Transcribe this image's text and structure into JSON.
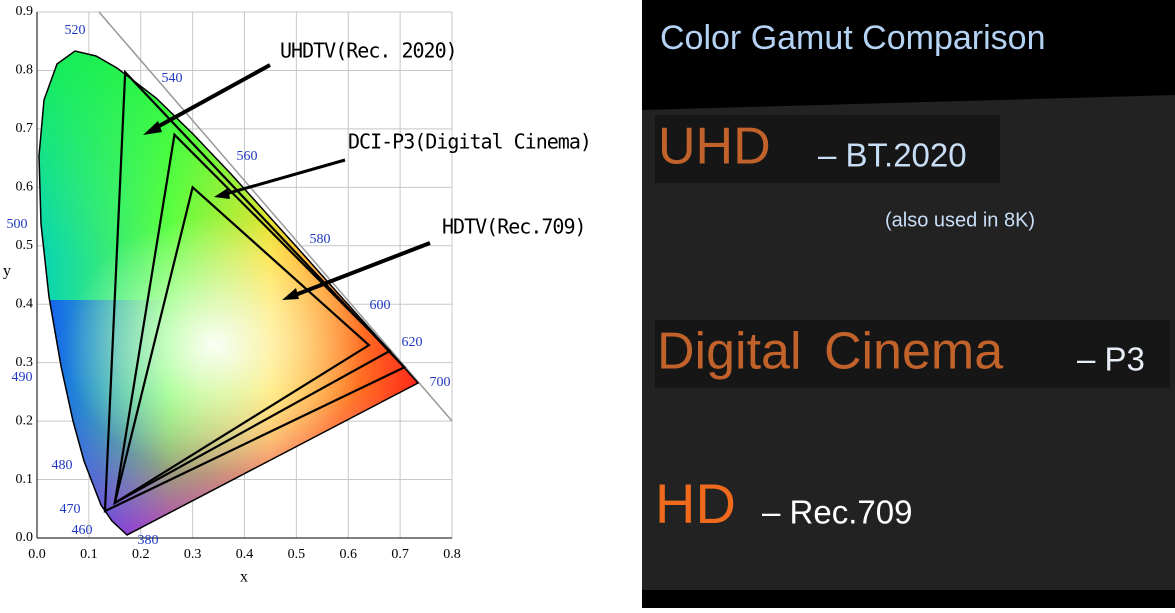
{
  "diagram": {
    "xlim": [
      0,
      0.8
    ],
    "ylim": [
      0,
      0.9
    ],
    "xticks": [
      {
        "value": 0,
        "label": "0.0"
      },
      {
        "value": 0.1,
        "label": "0.1"
      },
      {
        "value": 0.2,
        "label": "0.2"
      },
      {
        "value": 0.3,
        "label": "0.3"
      },
      {
        "value": 0.4,
        "label": "0.4"
      },
      {
        "value": 0.5,
        "label": "0.5"
      },
      {
        "value": 0.6,
        "label": "0.6"
      },
      {
        "value": 0.7,
        "label": "0.7"
      },
      {
        "value": 0.8,
        "label": "0.8"
      }
    ],
    "yticks": [
      {
        "value": 0,
        "label": "0.0"
      },
      {
        "value": 0.1,
        "label": "0.1"
      },
      {
        "value": 0.2,
        "label": "0.2"
      },
      {
        "value": 0.3,
        "label": "0.3"
      },
      {
        "value": 0.4,
        "label": "0.4"
      },
      {
        "value": 0.5,
        "label": "0.5"
      },
      {
        "value": 0.6,
        "label": "0.6"
      },
      {
        "value": 0.7,
        "label": "0.7"
      },
      {
        "value": 0.8,
        "label": "0.8"
      },
      {
        "value": 0.9,
        "label": "0.9"
      }
    ],
    "x_label": "x",
    "y_label": "y",
    "wavelengths": [
      520,
      540,
      560,
      580,
      600,
      620,
      700,
      500,
      490,
      480,
      470,
      460,
      380
    ],
    "gamuts": [
      {
        "name": "UHDTV(Rec. 2020)",
        "x": [
          0.708,
          0.17,
          0.131
        ],
        "y": [
          0.292,
          0.797,
          0.046
        ]
      },
      {
        "name": "DCI-P3(Digital Cinema)",
        "x": [
          0.68,
          0.265,
          0.15
        ],
        "y": [
          0.32,
          0.69,
          0.06
        ]
      },
      {
        "name": "HDTV(Rec.709)",
        "x": [
          0.64,
          0.3,
          0.15
        ],
        "y": [
          0.33,
          0.6,
          0.06
        ]
      }
    ]
  },
  "slide": {
    "title": "Color Gamut Comparison",
    "items": [
      {
        "name": "UHD",
        "detail": "– BT.2020",
        "note": "(also used in 8K)"
      },
      {
        "name": "Digital Cinema",
        "detail": "– P3"
      },
      {
        "name": "HD",
        "detail": "– Rec.709"
      }
    ]
  }
}
